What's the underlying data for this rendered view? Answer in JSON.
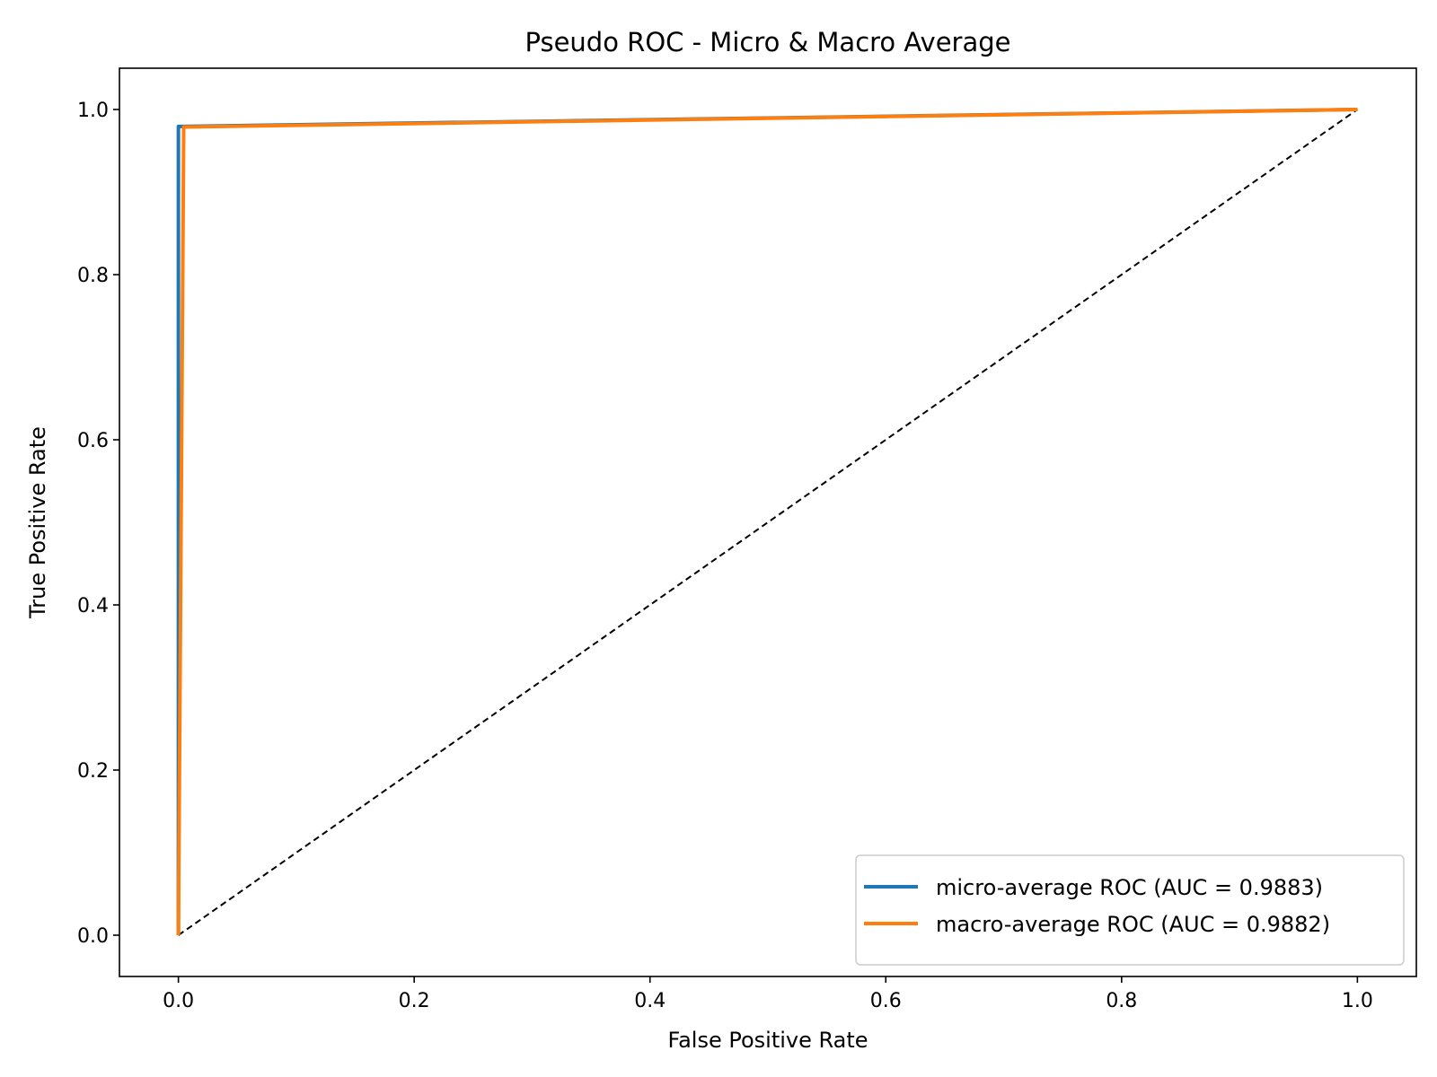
{
  "chart_data": {
    "type": "line",
    "title": "Pseudo ROC - Micro & Macro Average",
    "xlabel": "False Positive Rate",
    "ylabel": "True Positive Rate",
    "xlim": [
      -0.05,
      1.05
    ],
    "ylim": [
      -0.05,
      1.05
    ],
    "xticks": [
      0.0,
      0.2,
      0.4,
      0.6,
      0.8,
      1.0
    ],
    "xtick_labels": [
      "0.0",
      "0.2",
      "0.4",
      "0.6",
      "0.8",
      "1.0"
    ],
    "yticks": [
      0.0,
      0.2,
      0.4,
      0.6,
      0.8,
      1.0
    ],
    "ytick_labels": [
      "0.0",
      "0.2",
      "0.4",
      "0.6",
      "0.8",
      "1.0"
    ],
    "grid": false,
    "legend_position": "lower-right",
    "series": [
      {
        "name": "micro-average ROC (AUC = 0.9883)",
        "color": "#1f77b4",
        "x": [
          0.0,
          0.0,
          0.0024,
          1.0
        ],
        "y": [
          0.0,
          0.9795,
          0.9795,
          1.0
        ]
      },
      {
        "name": "macro-average ROC (AUC = 0.9882)",
        "color": "#ff7f0e",
        "x": [
          0.0,
          0.0045,
          1.0
        ],
        "y": [
          0.0,
          0.9788,
          1.0
        ]
      }
    ],
    "reference_line": {
      "style": "dashed",
      "color": "#000000",
      "x": [
        0.0,
        1.0
      ],
      "y": [
        0.0,
        1.0
      ]
    }
  }
}
